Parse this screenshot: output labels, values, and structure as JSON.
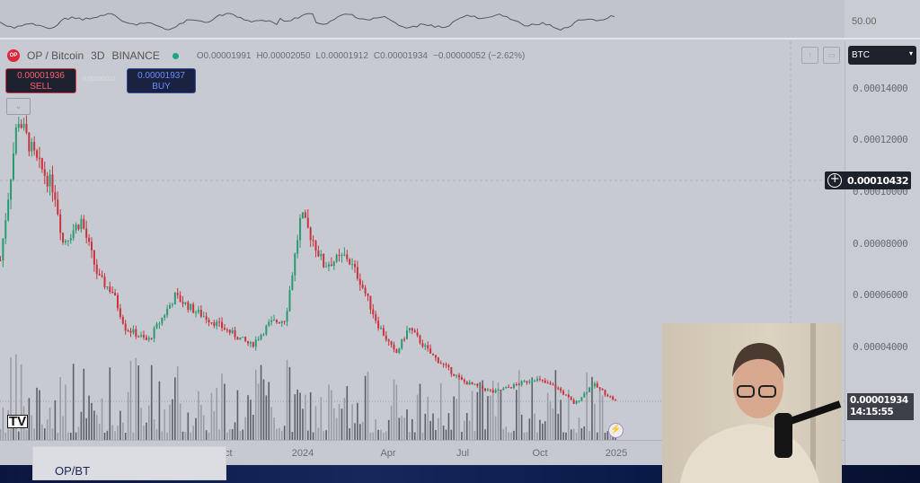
{
  "symbol": {
    "name": "OP / Bitcoin",
    "interval": "3D",
    "exchange": "BINANCE",
    "logo_text": "OP"
  },
  "ohlc": {
    "open": "O0.00001991",
    "high": "H0.00002050",
    "low": "L0.00001912",
    "close": "C0.00001934",
    "change": "−0.00000052 (−2.62%)"
  },
  "trade": {
    "sell_price": "0.00001936",
    "sell_label": "SELL",
    "buy_price": "0.00001937",
    "buy_label": "BUY",
    "spread": "0.00000001"
  },
  "currency_select": "BTC",
  "oscillator": {
    "level_label": "50.00"
  },
  "crosshair_price": "0.00010432",
  "last_price": {
    "price": "0.00001934",
    "countdown": "14:15:55"
  },
  "overlay_title": "OP/BT",
  "colors": {
    "up": "#2a9a72",
    "down": "#c8333f",
    "volume": "#6f7278",
    "background": "#c8cad1"
  },
  "chart_data": {
    "type": "candlestick",
    "interval": "3D",
    "y_axis": {
      "ticks": [
        "0.00014000",
        "0.00012000",
        "0.00010000",
        "0.00008000",
        "0.00006000",
        "0.00004000"
      ],
      "range": [
        1.75e-05,
        0.000155
      ]
    },
    "x_axis": {
      "ticks": [
        "Oct",
        "2024",
        "Apr",
        "Jul",
        "Oct",
        "2025"
      ]
    },
    "grid": false,
    "approx_close_path": [
      [
        "2023-01-19",
        7.36e-05
      ],
      [
        "2023-02-08",
        0.000129
      ],
      [
        "2023-03-01",
        0.000112
      ],
      [
        "2023-03-22",
        0.000101
      ],
      [
        "2023-04-01",
        8.05e-05
      ],
      [
        "2023-04-22",
        8.9e-05
      ],
      [
        "2023-05-12",
        6.66e-05
      ],
      [
        "2023-05-28",
        6.15e-05
      ],
      [
        "2023-06-12",
        4.76e-05
      ],
      [
        "2023-07-08",
        4.24e-05
      ],
      [
        "2023-08-08",
        5.97e-05
      ],
      [
        "2023-08-29",
        5.45e-05
      ],
      [
        "2023-09-24",
        4.93e-05
      ],
      [
        "2023-11-04",
        4.07e-05
      ],
      [
        "2023-11-25",
        4.93e-05
      ],
      [
        "2023-12-13",
        5.1e-05
      ],
      [
        "2023-12-31",
        9.09e-05
      ],
      [
        "2024-01-15",
        8.05e-05
      ],
      [
        "2024-01-26",
        7.18e-05
      ],
      [
        "2024-02-21",
        7.53e-05
      ],
      [
        "2024-03-07",
        6.66e-05
      ],
      [
        "2024-03-28",
        4.93e-05
      ],
      [
        "2024-04-18",
        3.72e-05
      ],
      [
        "2024-05-03",
        4.76e-05
      ],
      [
        "2024-05-29",
        3.72e-05
      ],
      [
        "2024-07-04",
        2.69e-05
      ],
      [
        "2024-08-09",
        2.27e-05
      ],
      [
        "2024-09-25",
        2.8e-05
      ],
      [
        "2024-10-21",
        2.44e-05
      ],
      [
        "2024-11-10",
        1.82e-05
      ],
      [
        "2024-12-01",
        2.59e-05
      ],
      [
        "2024-12-27",
        1.934e-05
      ]
    ]
  }
}
